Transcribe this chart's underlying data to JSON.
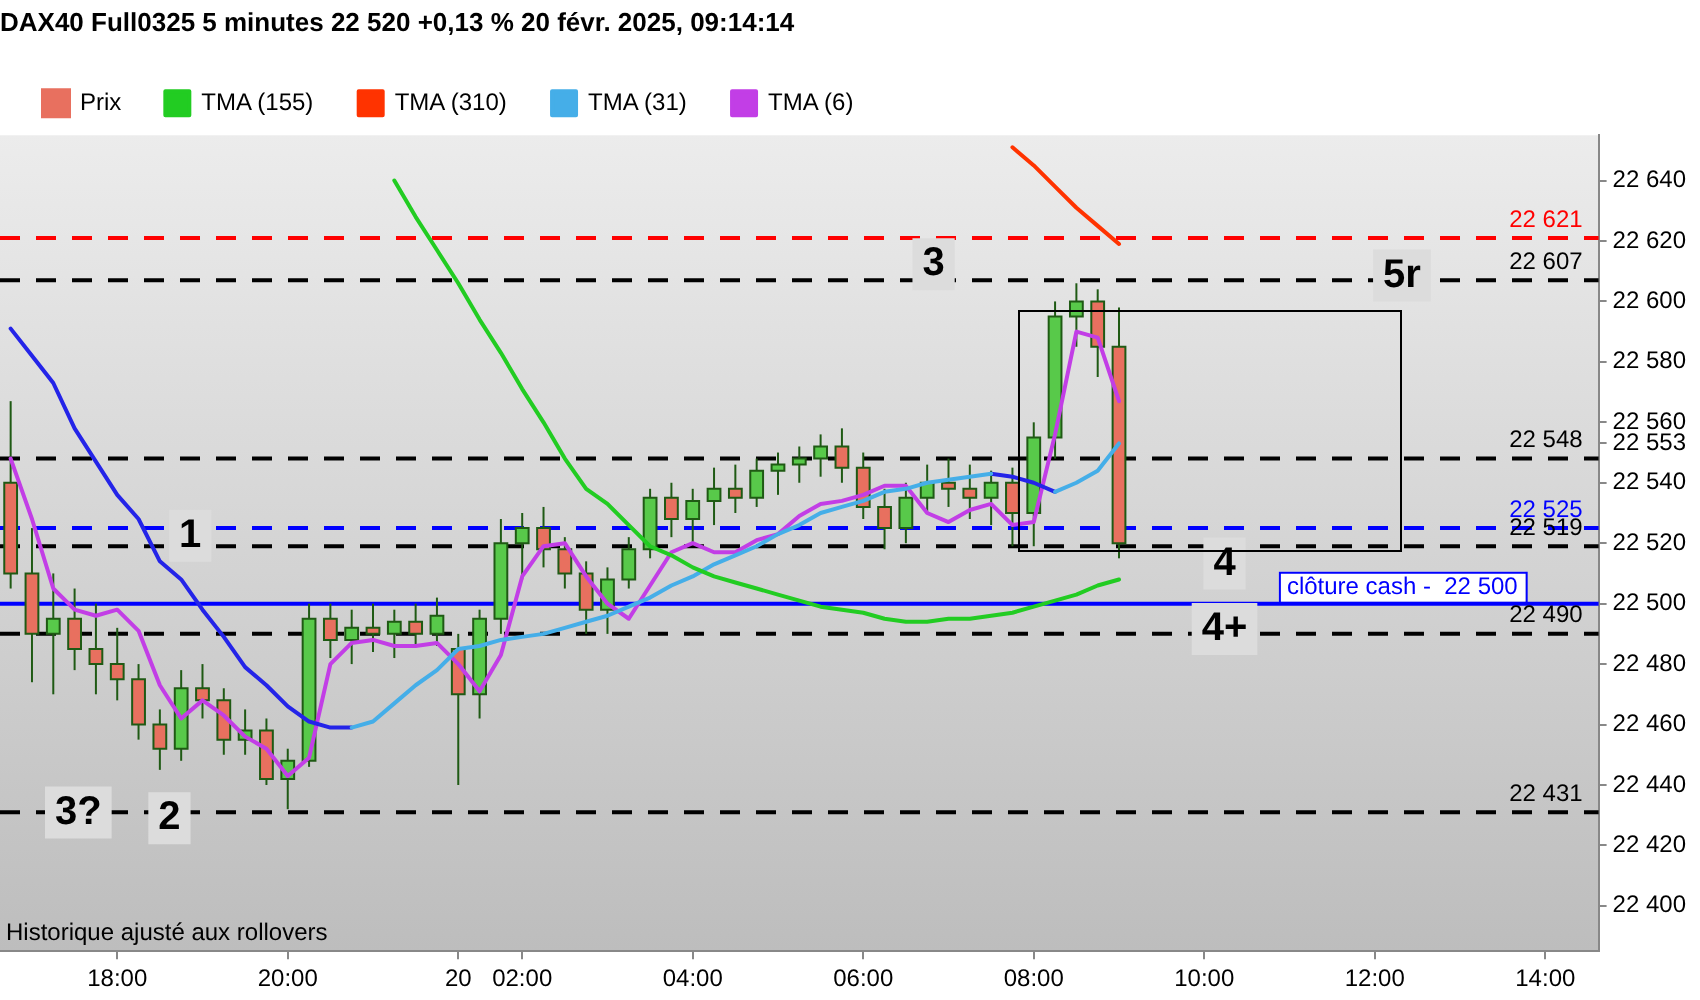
{
  "chart_data": {
    "type": "candlestick",
    "title": "DAX40 Full0325 5 minutes 22 520 +0,13 % 20 févr. 2025, 09:14:14",
    "legend": "top left",
    "marker": "none",
    "line_style": "solid",
    "categories": [
      null,
      null,
      null,
      null,
      null,
      "18:00",
      null,
      null,
      null,
      null,
      null,
      null,
      null,
      "20:00",
      null,
      null,
      null,
      null,
      null,
      null,
      null,
      "20",
      null,
      null,
      "02:00",
      null,
      null,
      null,
      null,
      null,
      null,
      null,
      "04:00",
      null,
      null,
      null,
      null,
      null,
      null,
      null,
      "06:00",
      null,
      null,
      null,
      null,
      null,
      null,
      null,
      "08:00",
      null,
      null,
      null,
      null,
      null,
      null,
      null,
      "10:00",
      null,
      null,
      null,
      null,
      null,
      null,
      null,
      "12:00",
      null,
      null,
      null,
      null,
      null,
      null,
      null,
      "14:00",
      null,
      null
    ],
    "ylim": [
      22385,
      22655
    ],
    "yticks": [
      {
        "value": 22400,
        "label": "22 400"
      },
      {
        "value": 22420,
        "label": "22 420"
      },
      {
        "value": 22440,
        "label": "22 440"
      },
      {
        "value": 22460,
        "label": "22 460"
      },
      {
        "value": 22480,
        "label": "22 480"
      },
      {
        "value": 22500,
        "label": "22 500"
      },
      {
        "value": 22520,
        "label": "22 520"
      },
      {
        "value": 22540,
        "label": "22 540"
      },
      {
        "value": 22553,
        "label": "22 553"
      },
      {
        "value": 22560,
        "label": "22 560"
      },
      {
        "value": 22580,
        "label": "22 580"
      },
      {
        "value": 22600,
        "label": "22 600"
      },
      {
        "value": 22620,
        "label": "22 620"
      },
      {
        "value": 22640,
        "label": "22 640"
      }
    ],
    "series": [
      {
        "name": "Prix",
        "type": "candlestick",
        "ohlc": [
          [
            22540,
            22567,
            22505,
            22510
          ],
          [
            22510,
            22525,
            22474,
            22490
          ],
          [
            22490,
            22510,
            22470,
            22495
          ],
          [
            22495,
            22505,
            22478,
            22485
          ],
          [
            22485,
            22500,
            22470,
            22480
          ],
          [
            22480,
            22492,
            22468,
            22475
          ],
          [
            22475,
            22480,
            22455,
            22460
          ],
          [
            22460,
            22465,
            22445,
            22452
          ],
          [
            22452,
            22478,
            22448,
            22472
          ],
          [
            22472,
            22480,
            22462,
            22468
          ],
          [
            22468,
            22472,
            22450,
            22455
          ],
          [
            22455,
            22465,
            22450,
            22458
          ],
          [
            22458,
            22462,
            22440,
            22442
          ],
          [
            22442,
            22452,
            22432,
            22448
          ],
          [
            22448,
            22500,
            22446,
            22495
          ],
          [
            22495,
            22500,
            22482,
            22488
          ],
          [
            22488,
            22498,
            22480,
            22492
          ],
          [
            22492,
            22500,
            22484,
            22490
          ],
          [
            22490,
            22498,
            22482,
            22494
          ],
          [
            22494,
            22500,
            22486,
            22490
          ],
          [
            22490,
            22502,
            22486,
            22496
          ],
          [
            22485,
            22490,
            22440,
            22470
          ],
          [
            22470,
            22498,
            22462,
            22495
          ],
          [
            22495,
            22528,
            22490,
            22520
          ],
          [
            22520,
            22530,
            22508,
            22525
          ],
          [
            22525,
            22532,
            22512,
            22518
          ],
          [
            22518,
            22522,
            22505,
            22510
          ],
          [
            22510,
            22514,
            22490,
            22498
          ],
          [
            22498,
            22512,
            22490,
            22508
          ],
          [
            22508,
            22522,
            22505,
            22518
          ],
          [
            22518,
            22538,
            22515,
            22535
          ],
          [
            22535,
            22540,
            22522,
            22528
          ],
          [
            22528,
            22538,
            22520,
            22534
          ],
          [
            22534,
            22545,
            22526,
            22538
          ],
          [
            22538,
            22546,
            22530,
            22535
          ],
          [
            22535,
            22548,
            22532,
            22544
          ],
          [
            22544,
            22550,
            22536,
            22546
          ],
          [
            22546,
            22552,
            22540,
            22548
          ],
          [
            22548,
            22556,
            22542,
            22552
          ],
          [
            22552,
            22558,
            22540,
            22545
          ],
          [
            22545,
            22550,
            22528,
            22532
          ],
          [
            22532,
            22538,
            22518,
            22525
          ],
          [
            22525,
            22540,
            22520,
            22535
          ],
          [
            22535,
            22546,
            22530,
            22540
          ],
          [
            22540,
            22548,
            22532,
            22538
          ],
          [
            22538,
            22546,
            22528,
            22535
          ],
          [
            22535,
            22544,
            22526,
            22540
          ],
          [
            22540,
            22545,
            22519,
            22530
          ],
          [
            22530,
            22560,
            22519,
            22555
          ],
          [
            22555,
            22600,
            22548,
            22595
          ],
          [
            22595,
            22606,
            22585,
            22600
          ],
          [
            22600,
            22604,
            22575,
            22585
          ],
          [
            22585,
            22598,
            22515,
            22520
          ],
          null,
          null,
          null,
          null,
          null,
          null,
          null,
          null,
          null,
          null,
          null,
          null,
          null,
          null,
          null,
          null,
          null,
          null,
          null,
          null,
          null,
          null
        ],
        "colors": [
          "#e8705f",
          "#e8705f",
          "#58c94a",
          "#e8705f",
          "#e8705f",
          "#e8705f",
          "#e8705f",
          "#e8705f",
          "#58c94a",
          "#e8705f",
          "#e8705f",
          "#58c94a",
          "#e8705f",
          "#58c94a",
          "#58c94a",
          "#e8705f",
          "#58c94a",
          "#e8705f",
          "#58c94a",
          "#e8705f",
          "#58c94a",
          "#e8705f",
          "#58c94a",
          "#58c94a",
          "#58c94a",
          "#e8705f",
          "#e8705f",
          "#e8705f",
          "#58c94a",
          "#58c94a",
          "#58c94a",
          "#e8705f",
          "#58c94a",
          "#58c94a",
          "#e8705f",
          "#58c94a",
          "#58c94a",
          "#58c94a",
          "#58c94a",
          "#e8705f",
          "#e8705f",
          "#e8705f",
          "#58c94a",
          "#58c94a",
          "#e8705f",
          "#e8705f",
          "#58c94a",
          "#e8705f",
          "#58c94a",
          "#58c94a",
          "#58c94a",
          "#e8705f",
          "#e8705f",
          null,
          null,
          null,
          null,
          null,
          null,
          null,
          null,
          null,
          null,
          null,
          null,
          null,
          null,
          null,
          null,
          null,
          null,
          null,
          null,
          null,
          null
        ]
      },
      {
        "name": "TMA (155)",
        "type": "line",
        "color": "#22cc22",
        "values": [
          null,
          null,
          null,
          null,
          null,
          null,
          null,
          null,
          null,
          null,
          null,
          null,
          null,
          null,
          null,
          null,
          null,
          null,
          22640,
          22628,
          22617,
          22606,
          22594,
          22583,
          22571,
          22560,
          22548,
          22538,
          22533,
          22526,
          22519,
          22516,
          22512,
          22509,
          22507,
          22505,
          22503,
          22501,
          22499,
          22498,
          22497,
          22495,
          22494,
          22494,
          22495,
          22495,
          22496,
          22497,
          22499,
          22501,
          22503,
          22506,
          22508,
          null,
          null,
          null,
          null,
          null,
          null,
          null,
          null,
          null,
          null,
          null,
          null,
          null,
          null,
          null,
          null,
          null,
          null,
          null,
          null,
          null,
          null
        ]
      },
      {
        "name": "TMA (310)",
        "type": "line",
        "color": "#ff3300",
        "values": [
          null,
          null,
          null,
          null,
          null,
          null,
          null,
          null,
          null,
          null,
          null,
          null,
          null,
          null,
          null,
          null,
          null,
          null,
          null,
          null,
          null,
          null,
          null,
          null,
          null,
          null,
          null,
          null,
          null,
          null,
          null,
          null,
          null,
          null,
          null,
          null,
          null,
          null,
          null,
          null,
          null,
          null,
          null,
          null,
          null,
          null,
          null,
          22651,
          22645,
          22638,
          22631,
          22625,
          22619,
          null,
          null,
          null,
          null,
          null,
          null,
          null,
          null,
          null,
          null,
          null,
          null,
          null,
          null,
          null,
          null,
          null,
          null,
          null,
          null,
          null,
          null
        ]
      },
      {
        "name": "TMA (31)",
        "type": "line",
        "color": "#45aee8",
        "values": [
          null,
          null,
          null,
          null,
          null,
          null,
          null,
          null,
          null,
          null,
          null,
          null,
          null,
          null,
          null,
          null,
          22459,
          22461,
          22467,
          22473,
          22478,
          22485,
          22486,
          22488,
          22489,
          22490,
          22492,
          22494,
          22496,
          22499,
          22502,
          22506,
          22509,
          22513,
          22516,
          22519,
          22523,
          22526,
          22530,
          22532,
          22534,
          22537,
          22538,
          22540,
          22541,
          22542,
          22543,
          null,
          null,
          22537,
          22540,
          22544,
          22553,
          null,
          null,
          null,
          null,
          null,
          null,
          null,
          null,
          null,
          null,
          null,
          null,
          null,
          null,
          null,
          null,
          null,
          null,
          null,
          null,
          null,
          null
        ]
      },
      {
        "type": "line",
        "color": "#2424e8",
        "values": [
          22591,
          22582,
          22573,
          22558,
          22547,
          22536,
          22528,
          22514,
          22508,
          22498,
          22489,
          22479,
          22473,
          22466,
          22461,
          22459,
          22459,
          null,
          null,
          null,
          null,
          null,
          null,
          null,
          null,
          null,
          null,
          null,
          null,
          null,
          null,
          null,
          null,
          null,
          null,
          null,
          null,
          null,
          null,
          null,
          null,
          null,
          null,
          null,
          null,
          null,
          22543,
          22542,
          22540,
          22537,
          null,
          null,
          null,
          null,
          null,
          null,
          null,
          null,
          null,
          null,
          null,
          null,
          null,
          null,
          null,
          null,
          null,
          null,
          null,
          null,
          null,
          null,
          null,
          null,
          null
        ]
      },
      {
        "name": "TMA (6)",
        "type": "line",
        "color": "#c23ee6",
        "values": [
          22548,
          22528,
          22505,
          22498,
          22496,
          22498,
          22491,
          22473,
          22462,
          22468,
          22463,
          22456,
          22452,
          22443,
          22449,
          22480,
          22487,
          22488,
          22486,
          22486,
          22487,
          22480,
          22471,
          22483,
          22509,
          22519,
          22520,
          22509,
          22500,
          22495,
          22506,
          22517,
          22520,
          22517,
          22517,
          22521,
          22523,
          22529,
          22533,
          22534,
          22536,
          22539,
          22539,
          22530,
          22527,
          22531,
          22533,
          22526,
          22527,
          22556,
          22590,
          22588,
          22567,
          null,
          null,
          null,
          null,
          null,
          null,
          null,
          null,
          null,
          null,
          null,
          null,
          null,
          null,
          null,
          null,
          null,
          null,
          null,
          null,
          null,
          null
        ]
      }
    ],
    "ref_lines": [
      {
        "axis": "y",
        "value": 22621,
        "label": "22 621",
        "color": "#ff0000",
        "line_style": "dashed"
      },
      {
        "axis": "y",
        "value": 22607,
        "label": "22 607",
        "color": "#000000",
        "line_style": "dashed"
      },
      {
        "axis": "y",
        "value": 22548,
        "label": "22 548",
        "color": "#000000",
        "line_style": "dashed"
      },
      {
        "axis": "y",
        "value": 22525,
        "label": "22 525",
        "color": "#0000ff",
        "line_style": "dashed"
      },
      {
        "axis": "y",
        "value": 22519,
        "label": "22 519",
        "color": "#000000",
        "line_style": "dashed"
      },
      {
        "axis": "y",
        "value": 22500,
        "label": "clôture cash -  22 500",
        "color": "#0000ff",
        "line_style": "solid"
      },
      {
        "axis": "y",
        "value": 22490,
        "label": "22 490",
        "color": "#000000",
        "line_style": "dashed"
      },
      {
        "axis": "y",
        "value": 22431,
        "label": "22 431",
        "color": "#000000",
        "line_style": "dashed"
      }
    ],
    "annotations": [
      "1",
      "2",
      "3?",
      "3",
      "5r",
      "4",
      "4+",
      "Historique ajusté aux rollovers"
    ]
  }
}
